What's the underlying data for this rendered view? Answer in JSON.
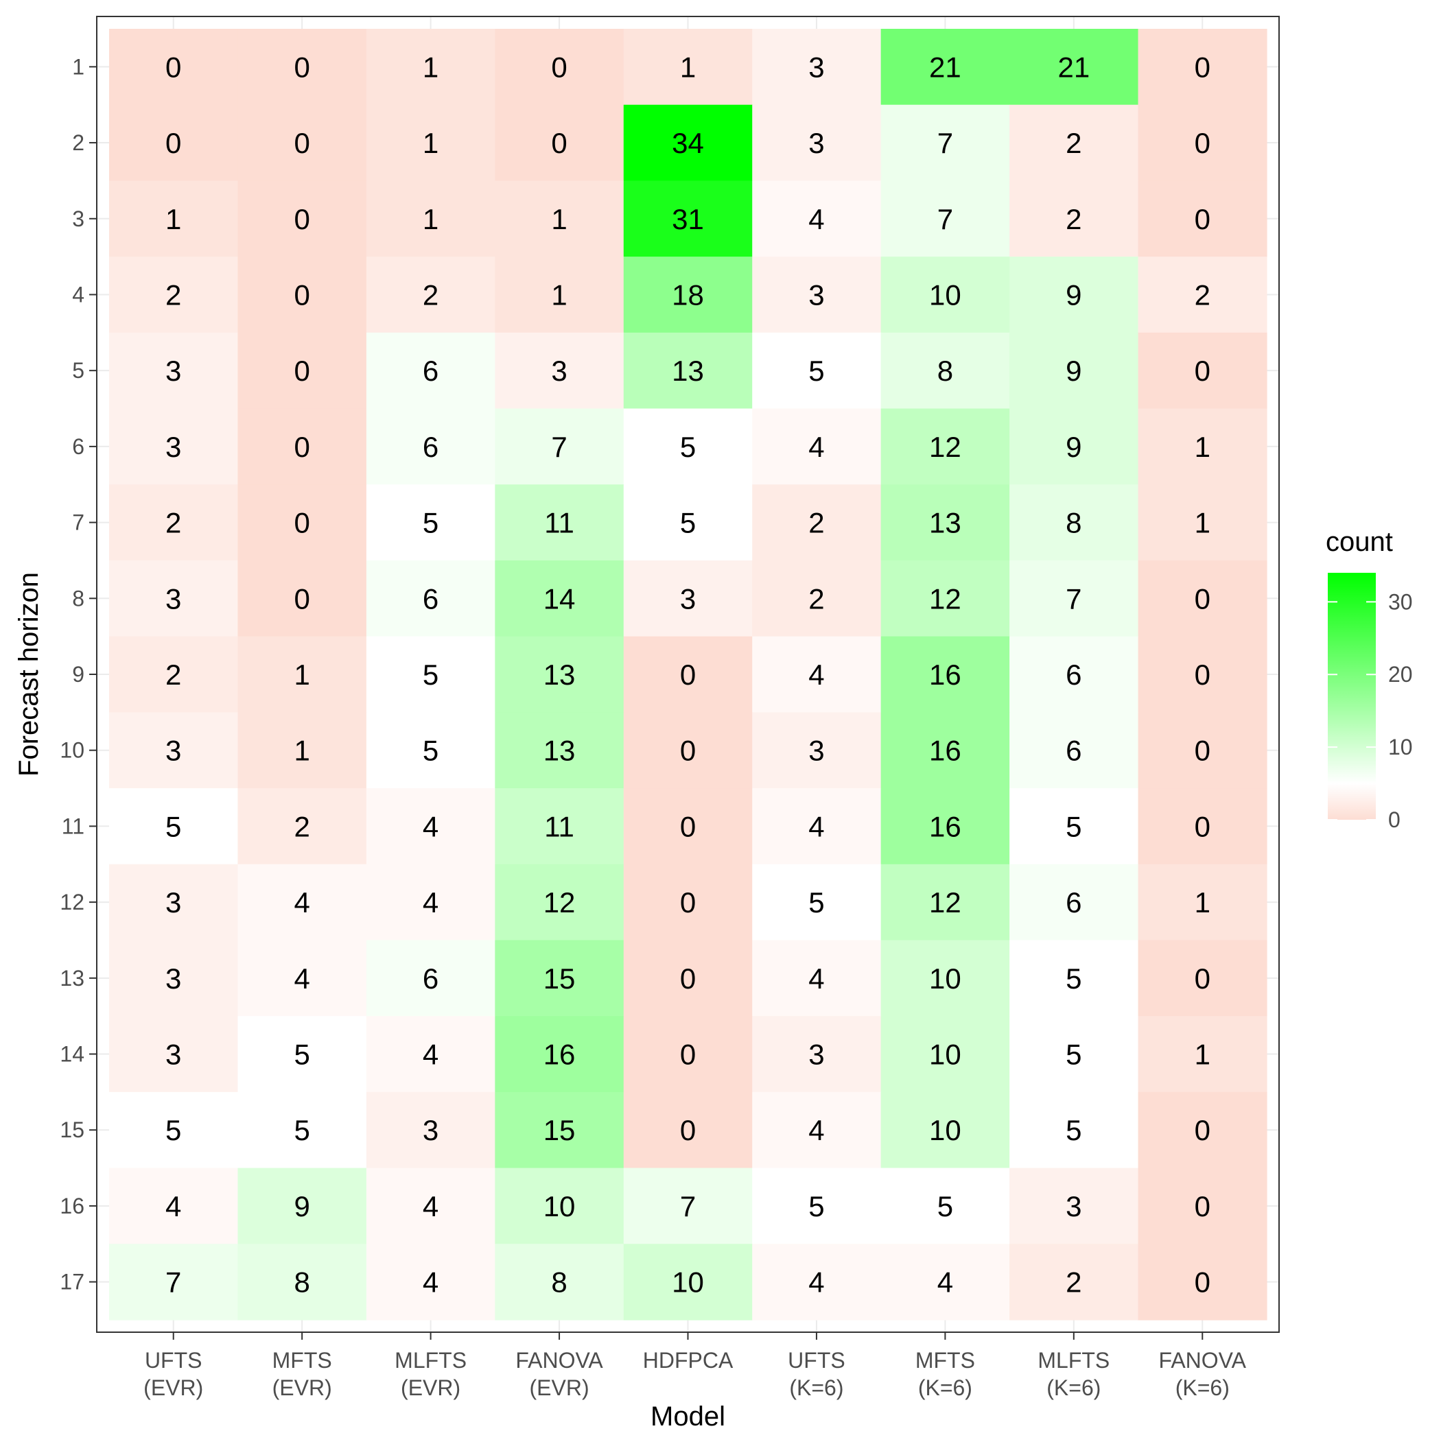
{
  "chart_data": {
    "type": "heatmap",
    "title": "",
    "xlabel": "Model",
    "ylabel": "Forecast horizon",
    "x_categories": [
      [
        "UFTS",
        "(EVR)"
      ],
      [
        "MFTS",
        "(EVR)"
      ],
      [
        "MLFTS",
        "(EVR)"
      ],
      [
        "FANOVA",
        "(EVR)"
      ],
      [
        "HDFPCA"
      ],
      [
        "UFTS",
        "(K=6)"
      ],
      [
        "MFTS",
        "(K=6)"
      ],
      [
        "MLFTS",
        "(K=6)"
      ],
      [
        "FANOVA",
        "(K=6)"
      ]
    ],
    "y_categories": [
      "1",
      "2",
      "3",
      "4",
      "5",
      "6",
      "7",
      "8",
      "9",
      "10",
      "11",
      "12",
      "13",
      "14",
      "15",
      "16",
      "17"
    ],
    "values": [
      [
        0,
        0,
        1,
        0,
        1,
        3,
        21,
        21,
        0
      ],
      [
        0,
        0,
        1,
        0,
        34,
        3,
        7,
        2,
        0
      ],
      [
        1,
        0,
        1,
        1,
        31,
        4,
        7,
        2,
        0
      ],
      [
        2,
        0,
        2,
        1,
        18,
        3,
        10,
        9,
        2
      ],
      [
        3,
        0,
        6,
        3,
        13,
        5,
        8,
        9,
        0
      ],
      [
        3,
        0,
        6,
        7,
        5,
        4,
        12,
        9,
        1
      ],
      [
        2,
        0,
        5,
        11,
        5,
        2,
        13,
        8,
        1
      ],
      [
        3,
        0,
        6,
        14,
        3,
        2,
        12,
        7,
        0
      ],
      [
        2,
        1,
        5,
        13,
        0,
        4,
        16,
        6,
        0
      ],
      [
        3,
        1,
        5,
        13,
        0,
        3,
        16,
        6,
        0
      ],
      [
        5,
        2,
        4,
        11,
        0,
        4,
        16,
        5,
        0
      ],
      [
        3,
        4,
        4,
        12,
        0,
        5,
        12,
        6,
        1
      ],
      [
        3,
        4,
        6,
        15,
        0,
        4,
        10,
        5,
        0
      ],
      [
        3,
        5,
        4,
        16,
        0,
        3,
        10,
        5,
        1
      ],
      [
        5,
        5,
        3,
        15,
        0,
        4,
        10,
        5,
        0
      ],
      [
        4,
        9,
        4,
        10,
        7,
        5,
        5,
        3,
        0
      ],
      [
        7,
        8,
        4,
        8,
        10,
        4,
        4,
        2,
        0
      ]
    ],
    "color_scale": {
      "low": "#FDDDD3",
      "mid": "#FFFFFF",
      "high": "#00FF00",
      "midpoint": 5,
      "limits": [
        0,
        34
      ]
    },
    "legend": {
      "title": "count",
      "ticks": [
        0,
        10,
        20,
        30
      ],
      "position": "right"
    },
    "grid": true
  }
}
